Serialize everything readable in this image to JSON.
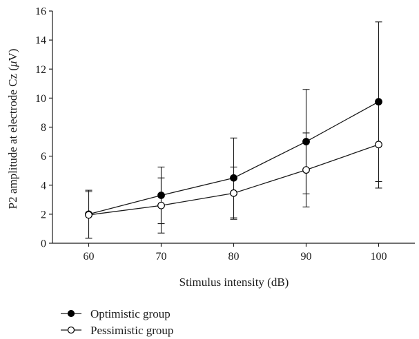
{
  "chart_data": {
    "type": "line",
    "title": "",
    "xlabel": "Stimulus intensity (dB)",
    "ylabel": "P2 amplitude at electrode Cz (μV)",
    "ylabel_parts": {
      "text": "P2 amplitude at electrode Cz (",
      "symbol": "μ",
      "unit": "V)"
    },
    "x": [
      60,
      70,
      80,
      90,
      100
    ],
    "xlim": [
      55,
      105
    ],
    "ylim": [
      0,
      16
    ],
    "xticks": [
      60,
      70,
      80,
      90,
      100
    ],
    "yticks": [
      0,
      2,
      4,
      6,
      8,
      10,
      12,
      14,
      16
    ],
    "grid": false,
    "legend_position": "bottom-left",
    "series": [
      {
        "name": "Optimistic group",
        "marker": "filled-circle",
        "values": [
          2.0,
          3.3,
          4.5,
          7.0,
          9.75
        ],
        "error": [
          1.65,
          1.95,
          2.75,
          3.6,
          5.5
        ]
      },
      {
        "name": "Pessimistic group",
        "marker": "open-circle",
        "values": [
          1.95,
          2.6,
          3.45,
          5.05,
          6.8
        ],
        "error": [
          1.6,
          1.9,
          1.8,
          2.55,
          3.0
        ]
      }
    ]
  },
  "colors": {
    "line": "#1a1a1a",
    "filled_marker": "#000000",
    "open_marker_fill": "#ffffff"
  }
}
